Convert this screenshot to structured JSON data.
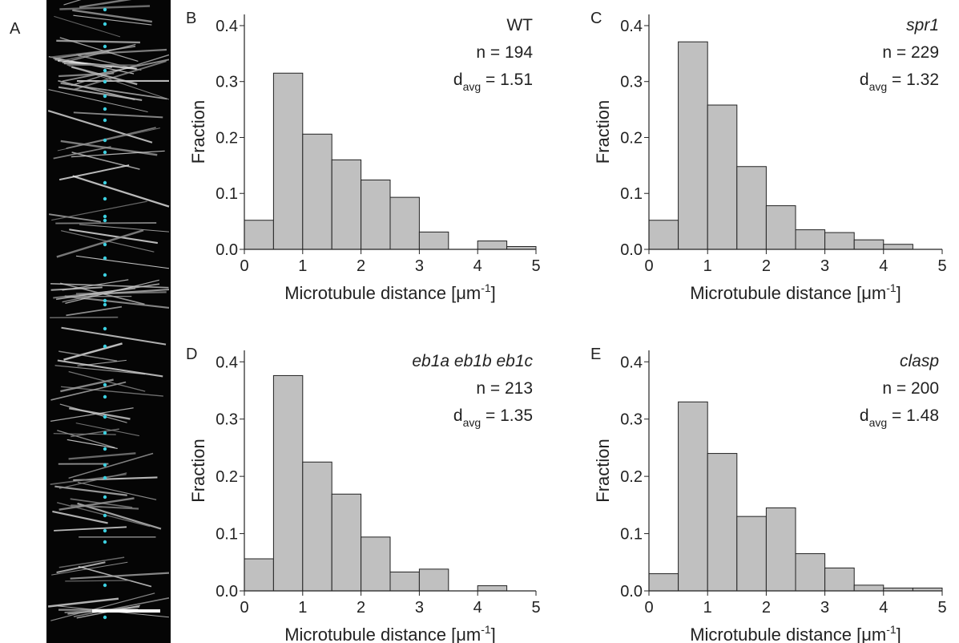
{
  "image_panel": {
    "label": "A"
  },
  "chart_data": [
    {
      "type": "histogram",
      "panel": "B",
      "title": "WT",
      "title_italic": false,
      "n_label": "n = 194",
      "avg_label": {
        "base": "d",
        "sub": "avg",
        "text": " = 1.51"
      },
      "bins": [
        0,
        0.5,
        1,
        1.5,
        2,
        2.5,
        3,
        3.5,
        4,
        4.5,
        5
      ],
      "values": [
        0.052,
        0.315,
        0.206,
        0.16,
        0.124,
        0.093,
        0.031,
        0,
        0.015,
        0.005
      ],
      "color": "#c0c0c0",
      "ylabel": "Fraction",
      "xlabel": {
        "text": "Microtubule distance [",
        "unit": "μm",
        "sup": "-1",
        "close": "]"
      },
      "xlim": [
        0,
        5
      ],
      "xticks": [
        0,
        1,
        2,
        3,
        4,
        5
      ],
      "ylim": [
        0,
        0.42
      ],
      "yticks": [
        {
          "value": 0,
          "label": "0.0"
        },
        0.1,
        0.2,
        0.3,
        0.4
      ]
    },
    {
      "type": "histogram",
      "panel": "C",
      "title": "spr1",
      "title_italic": true,
      "n_label": "n = 229",
      "avg_label": {
        "base": "d",
        "sub": "avg",
        "text": " = 1.32"
      },
      "bins": [
        0,
        0.5,
        1,
        1.5,
        2,
        2.5,
        3,
        3.5,
        4,
        4.5,
        5
      ],
      "values": [
        0.052,
        0.371,
        0.258,
        0.148,
        0.078,
        0.035,
        0.03,
        0.017,
        0.009,
        0
      ],
      "color": "#c0c0c0",
      "ylabel": "Fraction",
      "xlabel": {
        "text": "Microtubule distance [",
        "unit": "μm",
        "sup": "-1",
        "close": "]"
      },
      "xlim": [
        0,
        5
      ],
      "xticks": [
        0,
        1,
        2,
        3,
        4,
        5
      ],
      "ylim": [
        0,
        0.42
      ],
      "yticks": [
        {
          "value": 0,
          "label": "0.0"
        },
        0.1,
        0.2,
        0.3,
        0.4
      ]
    },
    {
      "type": "histogram",
      "panel": "D",
      "title": "eb1a eb1b eb1c",
      "title_italic": true,
      "n_label": "n = 213",
      "avg_label": {
        "base": "d",
        "sub": "avg",
        "text": " = 1.35"
      },
      "bins": [
        0,
        0.5,
        1,
        1.5,
        2,
        2.5,
        3,
        3.5,
        4,
        4.5,
        5
      ],
      "values": [
        0.056,
        0.376,
        0.225,
        0.169,
        0.094,
        0.033,
        0.038,
        0,
        0.009,
        0
      ],
      "color": "#c0c0c0",
      "ylabel": "Fraction",
      "xlabel": {
        "text": "Microtubule distance [",
        "unit": "μm",
        "sup": "-1",
        "close": "]"
      },
      "xlim": [
        0,
        5
      ],
      "xticks": [
        0,
        1,
        2,
        3,
        4,
        5
      ],
      "ylim": [
        0,
        0.42
      ],
      "yticks": [
        {
          "value": 0,
          "label": "0.0"
        },
        0.1,
        0.2,
        0.3,
        0.4
      ]
    },
    {
      "type": "histogram",
      "panel": "E",
      "title": "clasp",
      "title_italic": true,
      "n_label": "n = 200",
      "avg_label": {
        "base": "d",
        "sub": "avg",
        "text": " = 1.48"
      },
      "bins": [
        0,
        0.5,
        1,
        1.5,
        2,
        2.5,
        3,
        3.5,
        4,
        4.5,
        5
      ],
      "values": [
        0.03,
        0.33,
        0.24,
        0.13,
        0.145,
        0.065,
        0.04,
        0.01,
        0.005,
        0.005
      ],
      "color": "#c0c0c0",
      "ylabel": "Fraction",
      "xlabel": {
        "text": "Microtubule distance [",
        "unit": "μm",
        "sup": "-1",
        "close": "]"
      },
      "xlim": [
        0,
        5
      ],
      "xticks": [
        0,
        1,
        2,
        3,
        4,
        5
      ],
      "ylim": [
        0,
        0.42
      ],
      "yticks": [
        {
          "value": 0,
          "label": "0.0"
        },
        0.1,
        0.2,
        0.3,
        0.4
      ]
    }
  ]
}
